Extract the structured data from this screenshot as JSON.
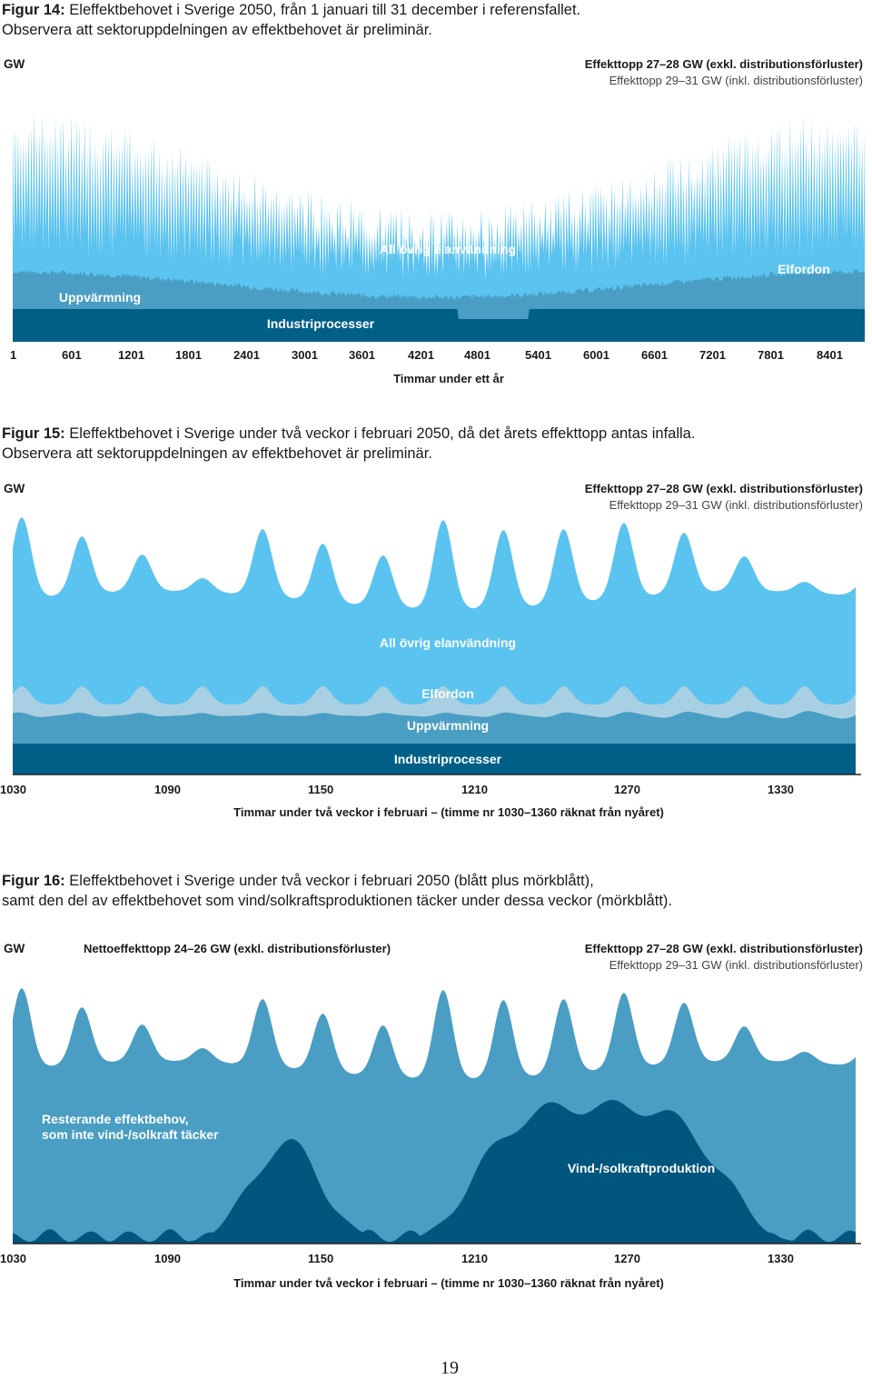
{
  "page_number": "19",
  "colors": {
    "other": "#5bc3ef",
    "ev": "#a9cfe3",
    "heating": "#4a9ec3",
    "industry": "#005f87",
    "wind": "#00567d"
  },
  "fig14": {
    "caption_prefix": "Figur 14:",
    "caption_line1": " Eleffektbehovet i Sverige 2050, från 1 januari till 31 december i referensfallet.",
    "caption_line2": "Observera att sektoruppdelningen av effektbehovet är preliminär.",
    "gw": "GW",
    "peak_excl": "Effekttopp 27–28 GW (exkl. distributionsförluster)",
    "peak_incl": "Effekttopp 29–31 GW (inkl. distributionsförluster)",
    "labels": {
      "other": "All övrig elanvändning",
      "ev": "Elfordon",
      "heating": "Uppvärmning",
      "industry": "Industriprocesser"
    },
    "x_axis_label": "Timmar under ett år"
  },
  "fig15": {
    "caption_prefix": "Figur 15:",
    "caption_line1": " Eleffektbehovet i Sverige under två veckor i februari 2050, då det årets effekttopp antas infalla.",
    "caption_line2": "Observera att sektoruppdelningen av effektbehovet är preliminär.",
    "gw": "GW",
    "peak_excl": "Effekttopp 27–28 GW (exkl. distributionsförluster)",
    "peak_incl": "Effekttopp 29–31 GW (inkl. distributionsförluster)",
    "labels": {
      "other": "All övrig elanvändning",
      "ev": "Elfordon",
      "heating": "Uppvärmning",
      "industry": "Industriprocesser"
    },
    "x_axis_label": "Timmar under två veckor i februari – (timme nr 1030–1360 räknat från nyåret)"
  },
  "fig16": {
    "caption_prefix": "Figur 16:",
    "caption_line1": " Eleffektbehovet i Sverige under två veckor i februari 2050 (blått plus mörkblått),",
    "caption_line2": "samt den del av effektbehovet som vind/solkraftsproduktionen täcker under dessa veckor (mörkblått).",
    "gw": "GW",
    "net_peak": "Nettoeffekttopp 24–26 GW (exkl. distributionsförluster)",
    "peak_excl": "Effekttopp 27–28 GW (exkl. distributionsförluster)",
    "peak_incl": "Effekttopp 29–31 GW (inkl. distributionsförluster)",
    "label_residual_1": "Resterande effektbehov,",
    "label_residual_2": "som inte vind-/solkraft täcker",
    "label_wind": "Vind-/solkraftproduktion",
    "x_axis_label": "Timmar under två veckor i februari – (timme nr 1030–1360 räknat från nyåret)"
  },
  "chart_data": [
    {
      "type": "area",
      "stacked": true,
      "x_range": [
        1,
        8760
      ],
      "xlabel": "Timmar under ett år",
      "ylabel": "GW",
      "x_ticks": [
        "1",
        "601",
        "1201",
        "1801",
        "2401",
        "3001",
        "3601",
        "4201",
        "4801",
        "5401",
        "6001",
        "6601",
        "7201",
        "7801",
        "8401"
      ],
      "series": [
        {
          "name": "Industriprocesser",
          "shape": "constant, dip in summer (~hours 4500–5300)"
        },
        {
          "name": "Uppvärmning",
          "shape": "high in winter, low in summer"
        },
        {
          "name": "Elfordon",
          "shape": "small, roughly constant"
        },
        {
          "name": "All övrig elanvändning",
          "shape": "daily cycles, largest in winter"
        }
      ],
      "annotations": [
        "Effekttopp 27–28 GW (exkl. distributionsförluster)",
        "Effekttopp 29–31 GW (inkl. distributionsförluster)"
      ]
    },
    {
      "type": "area",
      "stacked": true,
      "x_range": [
        1030,
        1360
      ],
      "x_ticks": [
        "1030",
        "1090",
        "1150",
        "1210",
        "1270",
        "1330"
      ],
      "xlabel": "Timmar under två veckor i februari – (timme nr 1030–1360 räknat från nyåret)",
      "ylabel": "GW",
      "daily_peaks": 14,
      "series": [
        {
          "name": "Industriprocesser"
        },
        {
          "name": "Uppvärmning"
        },
        {
          "name": "Elfordon"
        },
        {
          "name": "All övrig elanvändning"
        }
      ],
      "annotations": [
        "Effekttopp 27–28 GW (exkl. distributionsförluster)",
        "Effekttopp 29–31 GW (inkl. distributionsförluster)"
      ]
    },
    {
      "type": "area",
      "stacked": true,
      "x_range": [
        1030,
        1360
      ],
      "x_ticks": [
        "1030",
        "1090",
        "1150",
        "1210",
        "1270",
        "1330"
      ],
      "xlabel": "Timmar under två veckor i februari – (timme nr 1030–1360 räknat från nyåret)",
      "ylabel": "GW",
      "series": [
        {
          "name": "Vind-/solkraftproduktion",
          "shape": "peaks around hour 1140 and hours 1230–1320"
        },
        {
          "name": "Resterande effektbehov, som inte vind-/solkraft täcker"
        }
      ],
      "annotations": [
        "Nettoeffekttopp 24–26 GW (exkl. distributionsförluster)",
        "Effekttopp 27–28 GW (exkl. distributionsförluster)",
        "Effekttopp 29–31 GW (inkl. distributionsförluster)"
      ]
    }
  ]
}
